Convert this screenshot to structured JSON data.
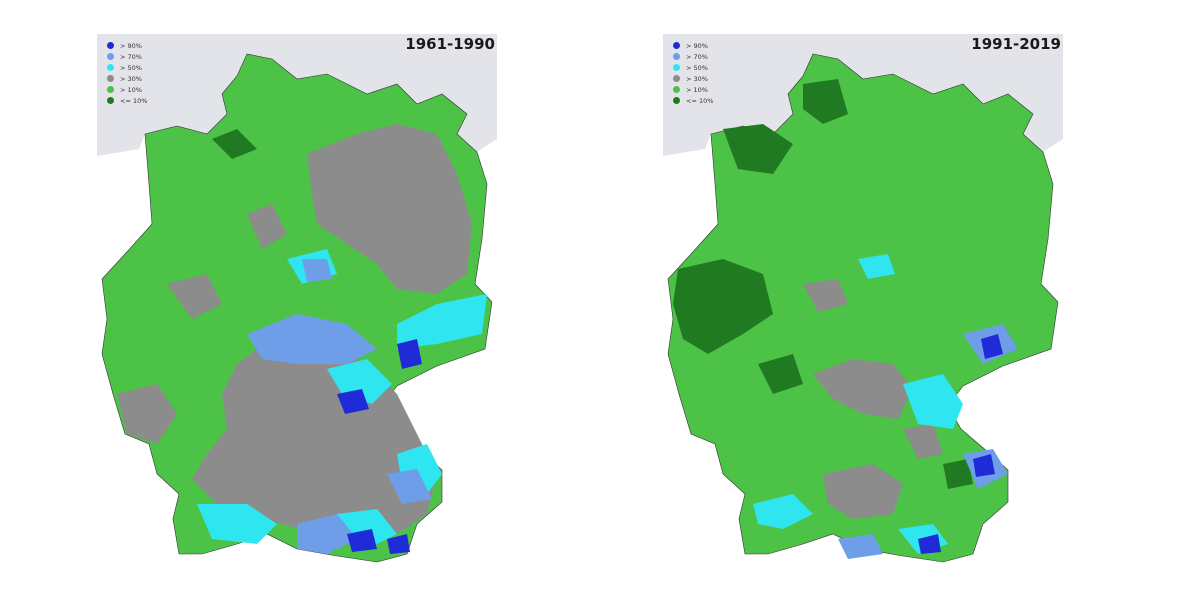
{
  "legend": [
    {
      "label": "> 90%",
      "color": "#1f2bd6"
    },
    {
      "label": "> 70%",
      "color": "#6f9ee8"
    },
    {
      "label": "> 50%",
      "color": "#2fe6f0"
    },
    {
      "label": "> 30%",
      "color": "#8c8c8c"
    },
    {
      "label": "> 10%",
      "color": "#4cc246"
    },
    {
      "label": "<= 10%",
      "color": "#1f7a22"
    }
  ],
  "panels": [
    {
      "period": "1961-1990"
    },
    {
      "period": "1991-2019"
    }
  ],
  "colors": {
    "sea": "#e3e3ea",
    "coast": "#111111",
    "outside": "#ffffff"
  }
}
